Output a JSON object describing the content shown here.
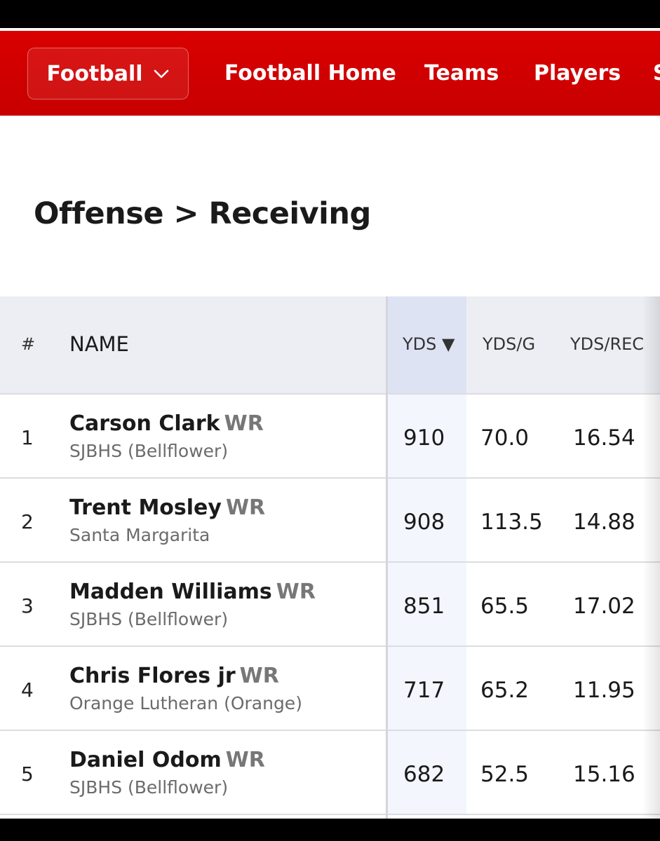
{
  "nav": {
    "sport_label": "Football",
    "links": [
      {
        "label": "Football Home"
      },
      {
        "label": "Teams"
      },
      {
        "label": "Players"
      },
      {
        "label": "S"
      }
    ]
  },
  "page": {
    "title": "Offense > Receiving"
  },
  "table": {
    "columns": {
      "rank": "#",
      "name": "NAME",
      "yds": "YDS ▼",
      "yds_per_game": "YDS/G",
      "yds_per_rec": "YDS/REC"
    },
    "rows": [
      {
        "rank": "1",
        "name": "Carson Clark",
        "position": "WR",
        "school": "SJBHS (Bellflower)",
        "yds": "910",
        "ydsg": "70.0",
        "ydsrec": "16.54"
      },
      {
        "rank": "2",
        "name": "Trent Mosley",
        "position": "WR",
        "school": "Santa Margarita",
        "yds": "908",
        "ydsg": "113.5",
        "ydsrec": "14.88"
      },
      {
        "rank": "3",
        "name": "Madden Williams",
        "position": "WR",
        "school": "SJBHS (Bellflower)",
        "yds": "851",
        "ydsg": "65.5",
        "ydsrec": "17.02"
      },
      {
        "rank": "4",
        "name": "Chris Flores jr",
        "position": "WR",
        "school": "Orange Lutheran (Orange)",
        "yds": "717",
        "ydsg": "65.2",
        "ydsrec": "11.95"
      },
      {
        "rank": "5",
        "name": "Daniel Odom",
        "position": "WR",
        "school": "SJBHS (Bellflower)",
        "yds": "682",
        "ydsg": "52.5",
        "ydsrec": "15.16"
      }
    ]
  },
  "colors": {
    "nav_red": "#d90000",
    "header_gray": "#eceef3",
    "sorted_column": "#dde3f3"
  },
  "icons": {
    "dropdown": "chevron-down-icon"
  }
}
